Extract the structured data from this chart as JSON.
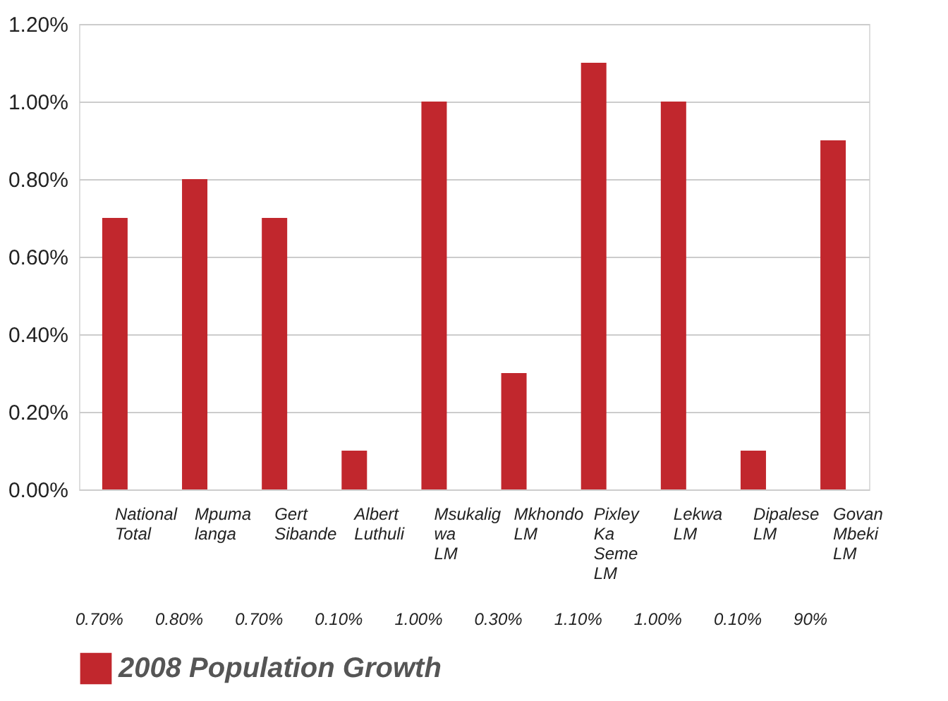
{
  "chart_data": {
    "type": "bar",
    "categories": [
      "National Total",
      "Mpuma langa",
      "Gert Sibande",
      "Albert Luthuli",
      "Msukalig wa LM",
      "Mkhondo LM",
      "Pixley Ka Seme LM",
      "Lekwa LM",
      "Dipalese LM",
      "Govan Mbeki LM"
    ],
    "series": [
      {
        "name": "2008 Population Growth",
        "color": "#c1272d",
        "values": [
          0.7,
          0.8,
          0.7,
          0.1,
          1.0,
          0.3,
          1.1,
          1.0,
          0.1,
          0.9
        ]
      }
    ],
    "value_labels": [
      "0.70%",
      "0.80%",
      "0.70%",
      "0.10%",
      "1.00%",
      "0.30%",
      "1.10%",
      "1.00%",
      "0.10%",
      "90%"
    ],
    "ylim": [
      0,
      1.2
    ],
    "yticks": [
      {
        "value": 0,
        "label": "0.00%"
      },
      {
        "value": 0.2,
        "label": "0.20%"
      },
      {
        "value": 0.4,
        "label": "0.40%"
      },
      {
        "value": 0.6,
        "label": "0.60%"
      },
      {
        "value": 0.8,
        "label": "0.80%"
      },
      {
        "value": 1.0,
        "label": "1.00%"
      },
      {
        "value": 1.2,
        "label": "1.20%"
      }
    ],
    "grid": "y",
    "legend": "bottom"
  }
}
